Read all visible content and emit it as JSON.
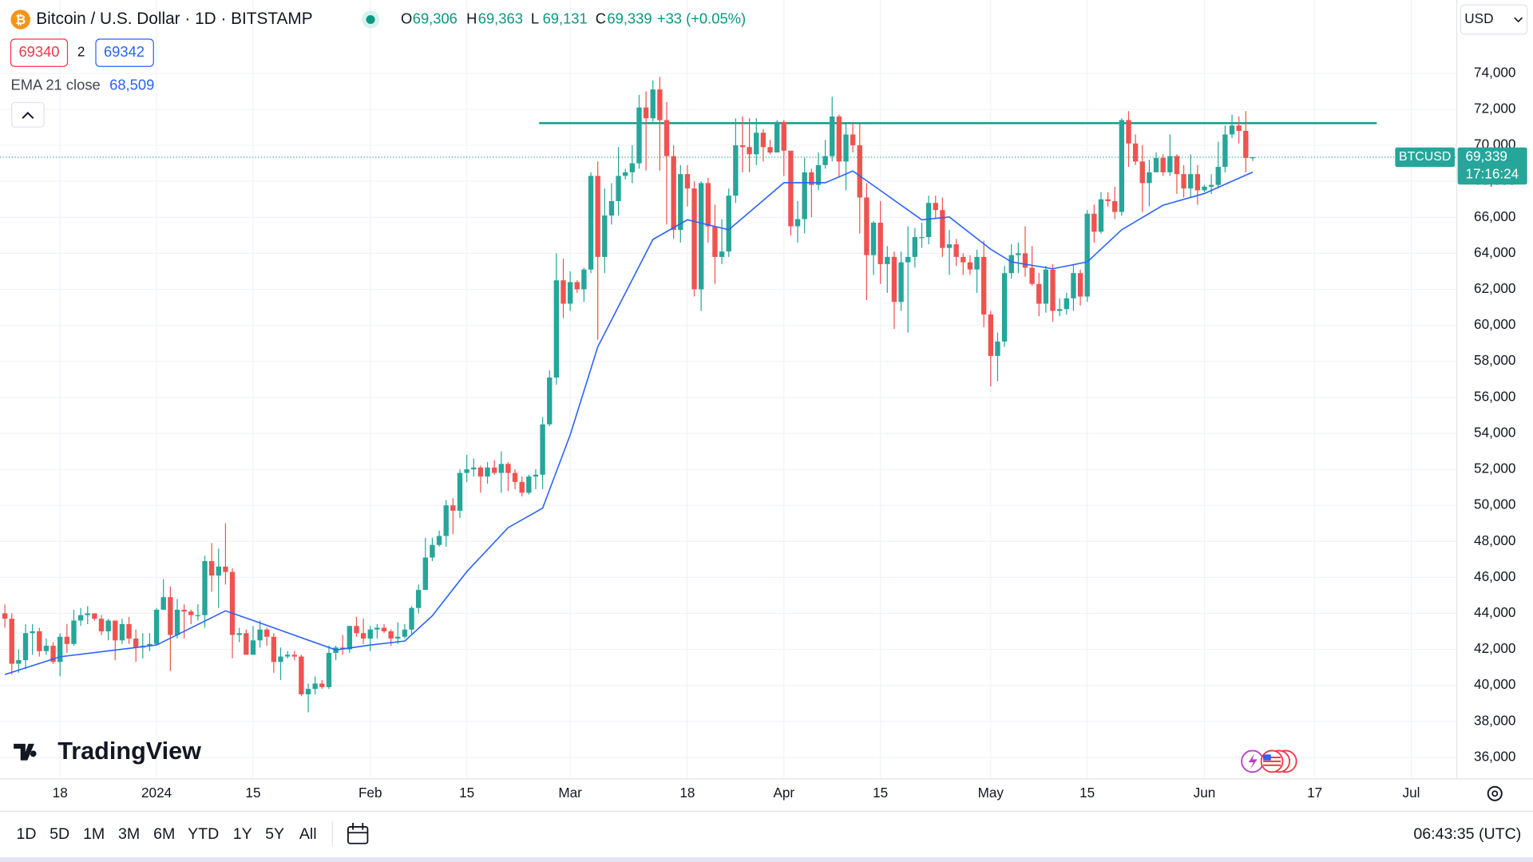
{
  "header": {
    "symbol": "Bitcoin / U.S. Dollar · 1D · BITSTAMP",
    "ohlc": [
      {
        "label": "O",
        "value": "69,306"
      },
      {
        "label": "H",
        "value": "69,363"
      },
      {
        "label": "L",
        "value": "69,131"
      },
      {
        "label": "C",
        "value": "69,339"
      }
    ],
    "change": "+33 (+0.05%)"
  },
  "quote": {
    "bid": "69340",
    "spread": "2",
    "ask": "69342"
  },
  "indicator": {
    "label": "EMA 21 close",
    "value": "68,509"
  },
  "currency": "USD",
  "logo": "TradingView",
  "timeframes": [
    "1D",
    "5D",
    "1M",
    "3M",
    "6M",
    "YTD",
    "1Y",
    "5Y",
    "All"
  ],
  "clock": "06:43:35 (UTC)",
  "chart_data": {
    "type": "candlestick",
    "xlim": [
      -0.71,
      210.6
    ],
    "xticks": [
      {
        "value": 8,
        "label": "18"
      },
      {
        "value": 22,
        "label": "2024"
      },
      {
        "value": 36,
        "label": "15"
      },
      {
        "value": 53,
        "label": "Feb"
      },
      {
        "value": 67,
        "label": "15"
      },
      {
        "value": 82,
        "label": "Mar"
      },
      {
        "value": 99,
        "label": "18"
      },
      {
        "value": 113,
        "label": "Apr"
      },
      {
        "value": 127,
        "label": "15"
      },
      {
        "value": 143,
        "label": "May"
      },
      {
        "value": 157,
        "label": "15"
      },
      {
        "value": 174,
        "label": "Jun"
      },
      {
        "value": 190,
        "label": "17"
      },
      {
        "value": 204,
        "label": "Jul"
      }
    ],
    "ylim": [
      34910,
      75900
    ],
    "yticks": [
      {
        "value": 36000,
        "label": "36,000"
      },
      {
        "value": 38000,
        "label": "38,000"
      },
      {
        "value": 40000,
        "label": "40,000"
      },
      {
        "value": 42000,
        "label": "42,000"
      },
      {
        "value": 44000,
        "label": "44,000"
      },
      {
        "value": 46000,
        "label": "46,000"
      },
      {
        "value": 48000,
        "label": "48,000"
      },
      {
        "value": 50000,
        "label": "50,000"
      },
      {
        "value": 52000,
        "label": "52,000"
      },
      {
        "value": 54000,
        "label": "54,000"
      },
      {
        "value": 56000,
        "label": "56,000"
      },
      {
        "value": 58000,
        "label": "58,000"
      },
      {
        "value": 60000,
        "label": "60,000"
      },
      {
        "value": 62000,
        "label": "62,000"
      },
      {
        "value": 64000,
        "label": "64,000"
      },
      {
        "value": 66000,
        "label": "66,000"
      },
      {
        "value": 68000,
        "label": "68,000"
      },
      {
        "value": 70000,
        "label": "70,000"
      },
      {
        "value": 72000,
        "label": "72,000"
      },
      {
        "value": 74000,
        "label": "74,000"
      }
    ],
    "grid": true,
    "series": [
      {
        "name": "BTCUSD",
        "color_up": "#26a69a",
        "color_down": "#ef5350",
        "open": [
          44000,
          43700,
          41200,
          41400,
          42900,
          43000,
          41900,
          42200,
          41300,
          42700,
          42300,
          43600,
          43900,
          44000,
          43700,
          43000,
          43600,
          42500,
          43400,
          42600,
          42100,
          42200,
          42300,
          44200,
          44900,
          42800,
          44200,
          44100,
          43900,
          43900,
          46900,
          46100,
          46600,
          46300,
          42800,
          42900,
          41700,
          42500,
          43100,
          42700,
          41300,
          41600,
          41700,
          41600,
          39500,
          39800,
          40100,
          39900,
          41800,
          42100,
          42000,
          43300,
          42900,
          42600,
          43100,
          43200,
          43000,
          42600,
          42700,
          43100,
          44300,
          45300,
          47100,
          47800,
          48300,
          50000,
          49700,
          51800,
          52000,
          52100,
          51600,
          52100,
          51800,
          52300,
          51800,
          51300,
          50700,
          51600,
          51700,
          54500,
          57100,
          62500,
          61200,
          62400,
          62000,
          63100,
          68300,
          63800,
          66100,
          66900,
          68300,
          68500,
          69000,
          72100,
          71500,
          73100,
          71400,
          69400,
          65300,
          68400,
          67600,
          62000,
          67900,
          65500,
          63800,
          64100,
          67200,
          70000,
          69900,
          69500,
          70700,
          69900,
          69600,
          71300,
          69700,
          65500,
          65900,
          68500,
          67800,
          68900,
          69400,
          71600,
          69100,
          70600,
          70000,
          67100,
          63900,
          65700,
          63400,
          63800,
          61300,
          63500,
          63800,
          64900,
          64900,
          66800,
          66400,
          64300,
          64500,
          63800,
          63500,
          63100,
          63800,
          60600,
          58300,
          59100,
          62900,
          63900,
          64000,
          63200,
          62300,
          61200,
          63100,
          60800,
          60900,
          61500,
          62900,
          61600,
          66200,
          65200,
          67000,
          66900,
          66300,
          71400,
          70100,
          69100,
          67900,
          68500,
          69300,
          68500,
          69400,
          68400,
          67600,
          68400,
          67500,
          67700,
          67800,
          68800,
          70600,
          71100,
          70800,
          69306
        ],
        "high": [
          44500,
          44000,
          42000,
          43400,
          43400,
          43200,
          42600,
          42400,
          42900,
          43400,
          44200,
          44300,
          44400,
          44000,
          43900,
          43700,
          43600,
          43700,
          43800,
          43100,
          42900,
          42900,
          44300,
          45900,
          45500,
          44800,
          44500,
          44200,
          44500,
          47200,
          47900,
          47600,
          49000,
          46500,
          43200,
          43100,
          43300,
          43600,
          43200,
          42900,
          42100,
          41900,
          41900,
          41700,
          40100,
          40500,
          40300,
          42200,
          42200,
          42800,
          43300,
          43800,
          43700,
          43300,
          43400,
          43400,
          43100,
          43500,
          43400,
          44400,
          45600,
          48200,
          48200,
          48600,
          50300,
          50400,
          52000,
          52800,
          52600,
          52200,
          52400,
          52500,
          53000,
          52400,
          52000,
          51600,
          51700,
          52000,
          54900,
          57500,
          64000,
          63700,
          63000,
          62500,
          63200,
          68500,
          69100,
          67600,
          67900,
          69900,
          68700,
          70000,
          72800,
          73000,
          73600,
          73800,
          72400,
          70000,
          68900,
          68900,
          68000,
          68000,
          68200,
          66700,
          65900,
          67600,
          71500,
          71600,
          71500,
          71500,
          70900,
          70300,
          71400,
          71400,
          69700,
          66900,
          69300,
          68700,
          69600,
          70300,
          72700,
          71700,
          71200,
          71300,
          71200,
          67900,
          65800,
          66900,
          64400,
          64100,
          64100,
          65500,
          65400,
          65700,
          67200,
          67200,
          67100,
          65300,
          64800,
          64000,
          63900,
          64200,
          64700,
          60800,
          59600,
          63300,
          64500,
          64600,
          65500,
          64400,
          62900,
          63300,
          63400,
          61500,
          61800,
          63400,
          63100,
          66400,
          66700,
          67400,
          67400,
          67700,
          71500,
          71900,
          70600,
          70000,
          69200,
          69600,
          69500,
          70600,
          69500,
          68900,
          69500,
          68900,
          67800,
          68400,
          70200,
          71100,
          71700,
          71600,
          71900,
          69363
        ],
        "low": [
          43200,
          40600,
          40700,
          40900,
          41700,
          41600,
          41700,
          41200,
          40500,
          41800,
          42200,
          43300,
          43400,
          43600,
          42800,
          42500,
          41400,
          42300,
          42300,
          41300,
          41500,
          41900,
          42200,
          44200,
          40800,
          42600,
          42600,
          43400,
          43600,
          43200,
          45200,
          44300,
          45600,
          41500,
          42400,
          41700,
          41700,
          42100,
          42200,
          40700,
          40300,
          41500,
          41400,
          39400,
          38500,
          39500,
          39800,
          39800,
          41400,
          41700,
          41800,
          42700,
          42300,
          41900,
          42600,
          42900,
          42200,
          42300,
          42600,
          42800,
          44000,
          45300,
          46900,
          47700,
          47700,
          48400,
          49300,
          51300,
          51600,
          50700,
          51200,
          51700,
          50700,
          50800,
          50900,
          50500,
          50600,
          50900,
          50900,
          54400,
          56700,
          60400,
          60800,
          61800,
          61300,
          62900,
          59200,
          62900,
          65600,
          66100,
          68100,
          67900,
          68700,
          68600,
          71300,
          68600,
          65600,
          64800,
          64600,
          66600,
          61600,
          60800,
          64600,
          62300,
          63400,
          63800,
          66800,
          68500,
          68500,
          68900,
          69100,
          69500,
          69600,
          68300,
          65000,
          64600,
          65100,
          66000,
          67500,
          68700,
          69100,
          68200,
          67500,
          69600,
          65100,
          61400,
          62800,
          62300,
          61800,
          59800,
          60800,
          59600,
          63200,
          64300,
          64500,
          65900,
          63800,
          62800,
          63300,
          62800,
          62800,
          61800,
          59900,
          56600,
          56900,
          58800,
          62600,
          62900,
          62700,
          62200,
          60500,
          60700,
          60200,
          60500,
          60600,
          60800,
          61100,
          61300,
          64600,
          65100,
          66600,
          65900,
          66100,
          68800,
          68900,
          66300,
          66600,
          68600,
          68300,
          68300,
          67300,
          67100,
          67100,
          66700,
          67400,
          67300,
          67600,
          68500,
          70400,
          70100,
          68500,
          69131
        ],
        "close": [
          43700,
          41200,
          41400,
          42900,
          43000,
          41900,
          42200,
          41300,
          42700,
          42300,
          43600,
          43900,
          44000,
          43700,
          43000,
          43600,
          42500,
          43400,
          42600,
          42100,
          42200,
          42300,
          44200,
          44900,
          42800,
          44200,
          44100,
          43900,
          43900,
          46900,
          46100,
          46600,
          46300,
          42800,
          42900,
          41700,
          42500,
          43100,
          42700,
          41300,
          41600,
          41700,
          41600,
          39500,
          39800,
          40100,
          39900,
          41800,
          42100,
          42000,
          43300,
          42900,
          42600,
          43100,
          43200,
          43000,
          42600,
          42700,
          43100,
          44300,
          45300,
          47100,
          47800,
          48300,
          50000,
          49700,
          51800,
          52000,
          52100,
          51600,
          52100,
          51800,
          52300,
          51800,
          51300,
          50700,
          51600,
          51700,
          54500,
          57100,
          62500,
          61200,
          62400,
          62000,
          63100,
          68300,
          63800,
          66100,
          66900,
          68300,
          68500,
          69000,
          72100,
          71500,
          73100,
          71400,
          69400,
          65300,
          68400,
          67600,
          62000,
          67900,
          65500,
          63800,
          64100,
          67200,
          70000,
          69900,
          69500,
          70700,
          69900,
          69600,
          71300,
          69700,
          65500,
          65900,
          68500,
          67800,
          68900,
          69400,
          71600,
          69100,
          70600,
          70000,
          67100,
          63900,
          65700,
          63400,
          63800,
          61300,
          63500,
          63800,
          64900,
          64900,
          66800,
          66400,
          64300,
          64500,
          63800,
          63500,
          63100,
          63800,
          60600,
          58300,
          59100,
          62900,
          63900,
          64000,
          63200,
          62300,
          61200,
          63100,
          60800,
          60900,
          61500,
          62900,
          61600,
          66200,
          65200,
          67000,
          66900,
          66300,
          71400,
          70100,
          69100,
          67900,
          68500,
          69300,
          68500,
          69400,
          68400,
          67600,
          68400,
          67500,
          67700,
          67800,
          68800,
          70600,
          71100,
          70800,
          69300,
          69339
        ]
      }
    ],
    "ema": {
      "color": "#2962ff",
      "x": [
        0,
        8,
        22,
        32,
        36,
        42,
        48,
        53,
        58,
        62,
        67,
        73,
        78,
        82,
        86,
        90,
        94,
        99,
        105,
        113,
        119,
        123,
        127,
        133,
        137,
        143,
        146,
        152,
        157,
        162,
        168,
        174,
        181
      ],
      "values": [
        40600,
        41590,
        42240,
        44140,
        43600,
        42780,
        41970,
        42240,
        42460,
        43870,
        46310,
        48760,
        49840,
        53910,
        58800,
        61790,
        64770,
        65860,
        65310,
        67920,
        67920,
        68570,
        67490,
        65860,
        66020,
        64230,
        63520,
        63140,
        63520,
        65310,
        66670,
        67320,
        68509
      ]
    },
    "level": {
      "value": 71230,
      "x": [
        77.5,
        199
      ],
      "color": "#089981"
    },
    "last_price": {
      "value": 69339,
      "label": "69,339",
      "countdown": "17:16:24",
      "color": "#26a69a"
    }
  }
}
